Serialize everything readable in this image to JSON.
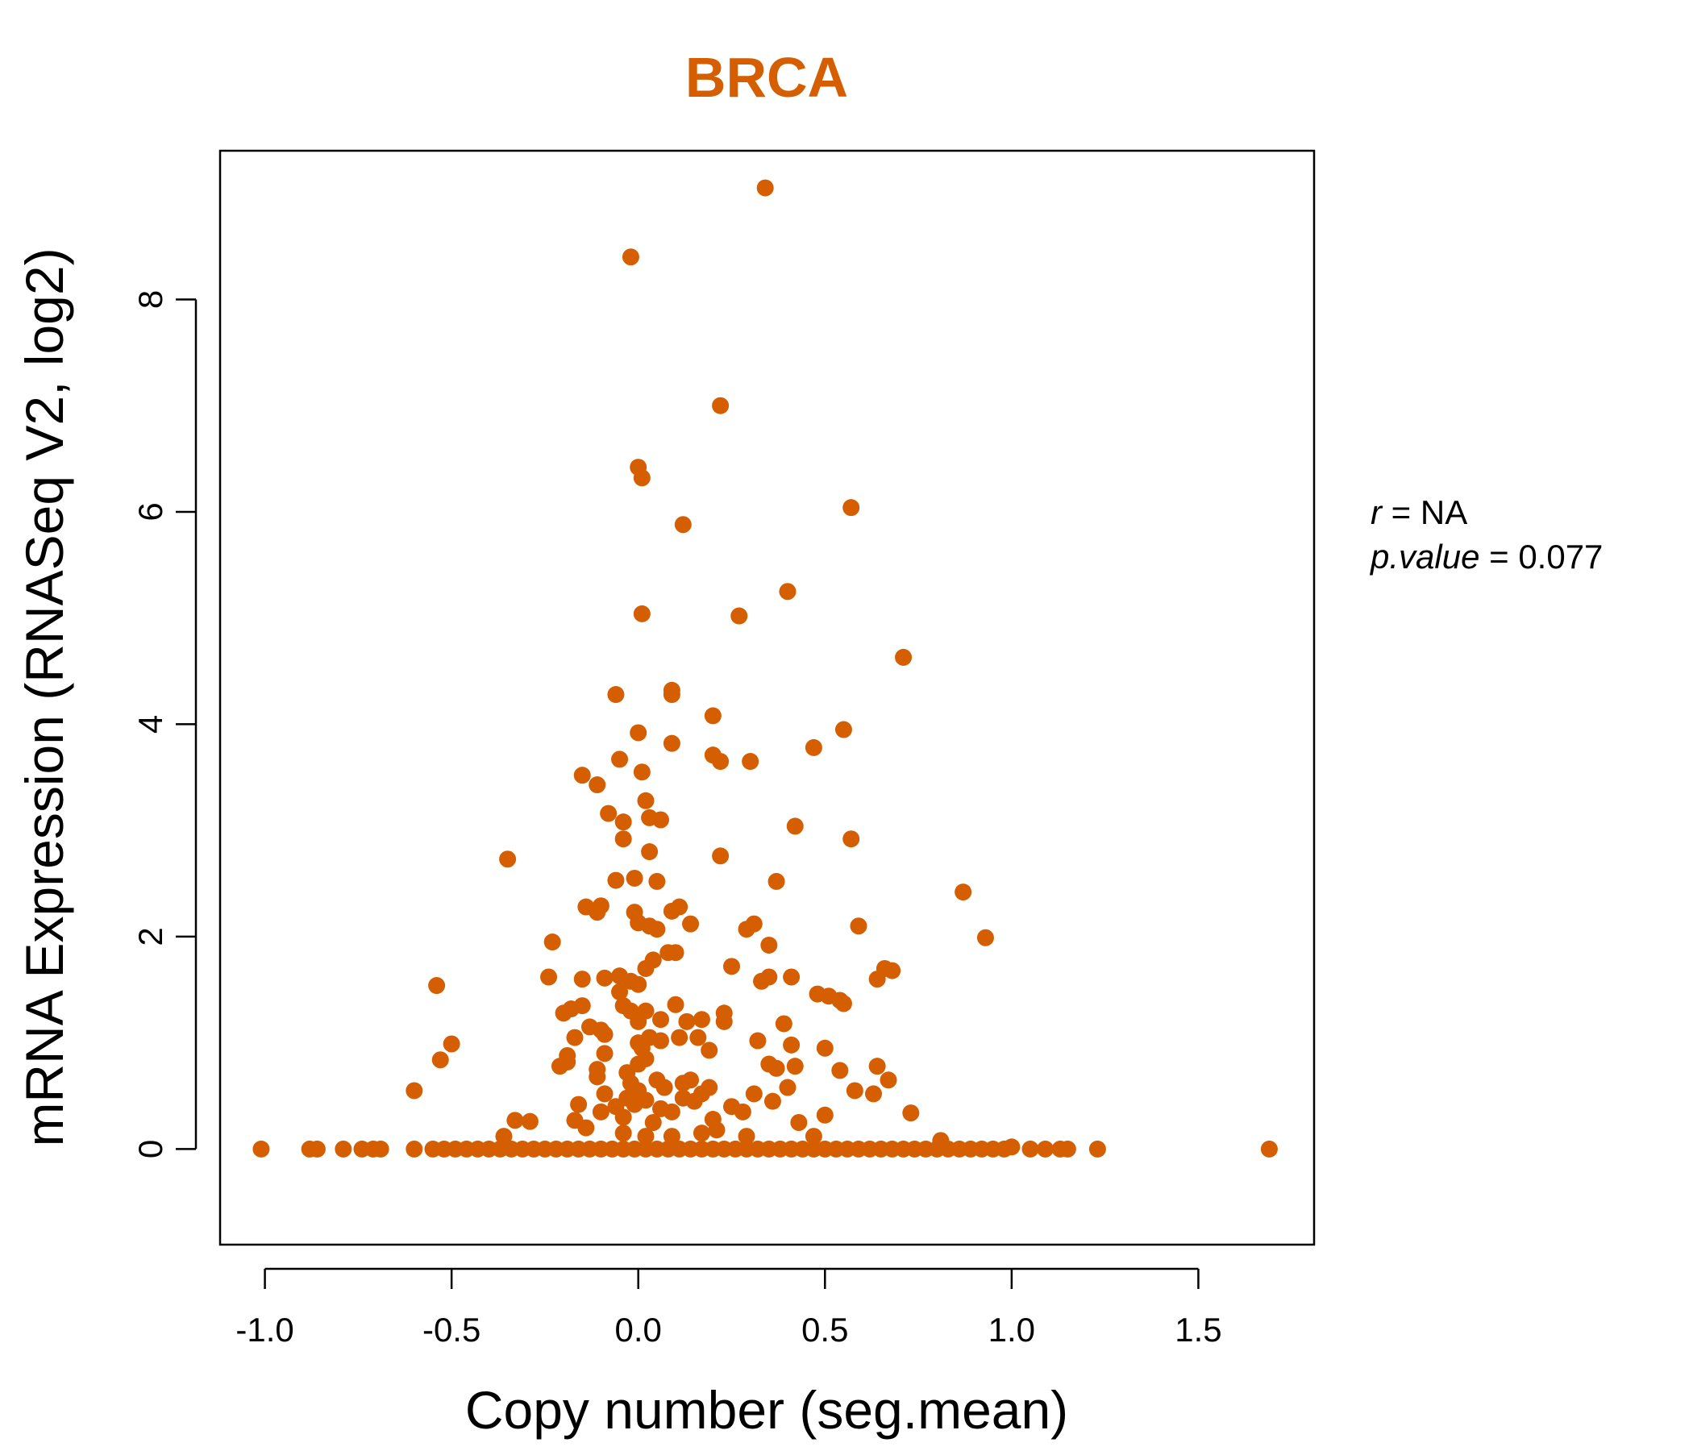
{
  "chart_data": {
    "type": "scatter",
    "title": "BRCA",
    "xlabel": "Copy number (seg.mean)",
    "ylabel": "mRNA Expression (RNASeq V2, log2)",
    "xlim": [
      -1.12,
      1.81
    ],
    "ylim": [
      -0.9,
      9.4
    ],
    "x_ticks": [
      -1.0,
      -0.5,
      0.0,
      0.5,
      1.0,
      1.5
    ],
    "x_tick_labels": [
      "-1.0",
      "-0.5",
      "0.0",
      "0.5",
      "1.0",
      "1.5"
    ],
    "y_ticks": [
      0,
      2,
      4,
      6,
      8
    ],
    "y_tick_labels": [
      "0",
      "2",
      "4",
      "6",
      "8"
    ],
    "grid": false,
    "legend": "none",
    "point_color": "#D55E00",
    "title_color": "#D55E00",
    "stats": {
      "r_label": "r",
      "r_value": "NA",
      "p_label": "p.value",
      "p_value": "0.077"
    },
    "points": [
      [
        0.34,
        9.05
      ],
      [
        -0.02,
        8.4
      ],
      [
        0.22,
        7.0
      ],
      [
        0.0,
        6.42
      ],
      [
        0.01,
        6.32
      ],
      [
        0.12,
        5.88
      ],
      [
        0.57,
        6.04
      ],
      [
        0.01,
        5.04
      ],
      [
        0.27,
        5.02
      ],
      [
        0.4,
        5.25
      ],
      [
        0.71,
        4.63
      ],
      [
        -0.06,
        4.28
      ],
      [
        0.09,
        4.32
      ],
      [
        0.09,
        4.28
      ],
      [
        0.2,
        4.08
      ],
      [
        0.0,
        3.92
      ],
      [
        0.55,
        3.95
      ],
      [
        -0.05,
        3.67
      ],
      [
        0.09,
        3.82
      ],
      [
        0.2,
        3.71
      ],
      [
        0.22,
        3.65
      ],
      [
        0.3,
        3.65
      ],
      [
        0.47,
        3.78
      ],
      [
        -0.15,
        3.52
      ],
      [
        -0.11,
        3.43
      ],
      [
        0.01,
        3.55
      ],
      [
        0.02,
        3.28
      ],
      [
        -0.08,
        3.16
      ],
      [
        -0.04,
        3.08
      ],
      [
        -0.04,
        2.92
      ],
      [
        0.03,
        3.12
      ],
      [
        0.06,
        3.1
      ],
      [
        0.03,
        2.8
      ],
      [
        0.22,
        2.76
      ],
      [
        0.42,
        3.04
      ],
      [
        0.57,
        2.92
      ],
      [
        -0.35,
        2.73
      ],
      [
        -0.06,
        2.53
      ],
      [
        -0.01,
        2.55
      ],
      [
        0.05,
        2.52
      ],
      [
        0.37,
        2.52
      ],
      [
        0.87,
        2.42
      ],
      [
        -0.14,
        2.28
      ],
      [
        -0.11,
        2.23
      ],
      [
        -0.1,
        2.29
      ],
      [
        -0.01,
        2.23
      ],
      [
        0.0,
        2.13
      ],
      [
        0.03,
        2.1
      ],
      [
        0.05,
        2.07
      ],
      [
        0.09,
        2.24
      ],
      [
        0.11,
        2.28
      ],
      [
        0.14,
        2.12
      ],
      [
        0.29,
        2.07
      ],
      [
        0.31,
        2.12
      ],
      [
        0.59,
        2.1
      ],
      [
        0.93,
        1.99
      ],
      [
        -0.23,
        1.95
      ],
      [
        0.35,
        1.92
      ],
      [
        -0.24,
        1.62
      ],
      [
        -0.15,
        1.6
      ],
      [
        -0.09,
        1.61
      ],
      [
        -0.05,
        1.63
      ],
      [
        -0.02,
        1.58
      ],
      [
        0.0,
        1.55
      ],
      [
        0.02,
        1.7
      ],
      [
        0.04,
        1.78
      ],
      [
        0.08,
        1.85
      ],
      [
        0.1,
        1.85
      ],
      [
        0.25,
        1.72
      ],
      [
        0.33,
        1.58
      ],
      [
        0.35,
        1.62
      ],
      [
        0.41,
        1.62
      ],
      [
        0.48,
        1.46
      ],
      [
        0.51,
        1.44
      ],
      [
        0.54,
        1.4
      ],
      [
        0.55,
        1.37
      ],
      [
        0.64,
        1.6
      ],
      [
        0.66,
        1.7
      ],
      [
        0.68,
        1.68
      ],
      [
        -0.54,
        1.54
      ],
      [
        -0.2,
        1.28
      ],
      [
        -0.18,
        1.32
      ],
      [
        -0.15,
        1.35
      ],
      [
        -0.13,
        1.15
      ],
      [
        -0.1,
        1.12
      ],
      [
        -0.05,
        1.48
      ],
      [
        -0.04,
        1.35
      ],
      [
        -0.02,
        1.3
      ],
      [
        0.0,
        1.2
      ],
      [
        0.02,
        1.3
      ],
      [
        0.06,
        1.22
      ],
      [
        0.1,
        1.36
      ],
      [
        0.13,
        1.2
      ],
      [
        0.17,
        1.22
      ],
      [
        0.23,
        1.28
      ],
      [
        0.23,
        1.2
      ],
      [
        -0.17,
        1.05
      ],
      [
        -0.09,
        1.08
      ],
      [
        0.0,
        1.0
      ],
      [
        0.01,
        0.95
      ],
      [
        0.03,
        1.05
      ],
      [
        0.06,
        1.02
      ],
      [
        0.11,
        1.05
      ],
      [
        0.16,
        1.05
      ],
      [
        0.19,
        0.93
      ],
      [
        0.32,
        1.02
      ],
      [
        0.39,
        1.18
      ],
      [
        0.41,
        0.98
      ],
      [
        0.5,
        0.95
      ],
      [
        -0.5,
        0.99
      ],
      [
        -0.53,
        0.84
      ],
      [
        -0.21,
        0.78
      ],
      [
        -0.19,
        0.88
      ],
      [
        -0.19,
        0.82
      ],
      [
        -0.11,
        0.75
      ],
      [
        -0.09,
        0.9
      ],
      [
        -0.03,
        0.72
      ],
      [
        0.0,
        0.8
      ],
      [
        0.02,
        0.85
      ],
      [
        0.35,
        0.8
      ],
      [
        0.37,
        0.76
      ],
      [
        0.42,
        0.78
      ],
      [
        0.54,
        0.74
      ],
      [
        0.64,
        0.78
      ],
      [
        -0.11,
        0.68
      ],
      [
        -0.02,
        0.62
      ],
      [
        0.05,
        0.65
      ],
      [
        0.07,
        0.58
      ],
      [
        0.12,
        0.62
      ],
      [
        0.14,
        0.65
      ],
      [
        0.17,
        0.52
      ],
      [
        0.19,
        0.58
      ],
      [
        0.31,
        0.52
      ],
      [
        0.36,
        0.45
      ],
      [
        0.4,
        0.58
      ],
      [
        0.58,
        0.55
      ],
      [
        0.63,
        0.52
      ],
      [
        0.67,
        0.65
      ],
      [
        -0.6,
        0.55
      ],
      [
        -0.16,
        0.42
      ],
      [
        -0.09,
        0.52
      ],
      [
        -0.06,
        0.4
      ],
      [
        -0.03,
        0.48
      ],
      [
        -0.01,
        0.42
      ],
      [
        0.0,
        0.55
      ],
      [
        0.02,
        0.46
      ],
      [
        0.06,
        0.38
      ],
      [
        0.09,
        0.35
      ],
      [
        0.12,
        0.48
      ],
      [
        0.15,
        0.45
      ],
      [
        0.25,
        0.4
      ],
      [
        0.28,
        0.35
      ],
      [
        0.5,
        0.32
      ],
      [
        0.73,
        0.34
      ],
      [
        -0.33,
        0.27
      ],
      [
        -0.29,
        0.26
      ],
      [
        -0.17,
        0.27
      ],
      [
        -0.14,
        0.2
      ],
      [
        -0.1,
        0.35
      ],
      [
        -0.04,
        0.3
      ],
      [
        0.04,
        0.25
      ],
      [
        0.2,
        0.28
      ],
      [
        0.43,
        0.25
      ],
      [
        -0.36,
        0.12
      ],
      [
        -0.04,
        0.15
      ],
      [
        0.02,
        0.12
      ],
      [
        0.09,
        0.12
      ],
      [
        0.17,
        0.15
      ],
      [
        0.21,
        0.18
      ],
      [
        0.29,
        0.12
      ],
      [
        0.47,
        0.12
      ],
      [
        0.81,
        0.08
      ],
      [
        -1.01,
        0.0
      ],
      [
        -0.88,
        0.0
      ],
      [
        -0.86,
        0.0
      ],
      [
        -0.79,
        0.0
      ],
      [
        -0.74,
        0.0
      ],
      [
        -0.71,
        0.0
      ],
      [
        -0.69,
        0.0
      ],
      [
        -0.6,
        0.0
      ],
      [
        -0.55,
        0.0
      ],
      [
        -0.52,
        0.0
      ],
      [
        -0.49,
        0.0
      ],
      [
        -0.46,
        0.0
      ],
      [
        -0.43,
        0.0
      ],
      [
        -0.4,
        0.0
      ],
      [
        -0.37,
        0.0
      ],
      [
        -0.34,
        0.0
      ],
      [
        -0.31,
        0.0
      ],
      [
        -0.28,
        0.0
      ],
      [
        -0.25,
        0.0
      ],
      [
        -0.22,
        0.0
      ],
      [
        -0.19,
        0.0
      ],
      [
        -0.16,
        0.0
      ],
      [
        -0.13,
        0.0
      ],
      [
        -0.1,
        0.0
      ],
      [
        -0.07,
        0.0
      ],
      [
        -0.04,
        0.0
      ],
      [
        -0.01,
        0.0
      ],
      [
        0.02,
        0.0
      ],
      [
        0.05,
        0.0
      ],
      [
        0.08,
        0.0
      ],
      [
        0.11,
        0.0
      ],
      [
        0.14,
        0.0
      ],
      [
        0.17,
        0.0
      ],
      [
        0.2,
        0.0
      ],
      [
        0.23,
        0.0
      ],
      [
        0.26,
        0.0
      ],
      [
        0.29,
        0.0
      ],
      [
        0.32,
        0.0
      ],
      [
        0.35,
        0.0
      ],
      [
        0.38,
        0.0
      ],
      [
        0.41,
        0.0
      ],
      [
        0.44,
        0.0
      ],
      [
        0.47,
        0.0
      ],
      [
        0.5,
        0.0
      ],
      [
        0.53,
        0.0
      ],
      [
        0.56,
        0.0
      ],
      [
        0.59,
        0.0
      ],
      [
        0.62,
        0.0
      ],
      [
        0.65,
        0.0
      ],
      [
        0.68,
        0.0
      ],
      [
        0.71,
        0.0
      ],
      [
        0.74,
        0.0
      ],
      [
        0.77,
        0.0
      ],
      [
        0.8,
        0.0
      ],
      [
        0.83,
        0.0
      ],
      [
        0.86,
        0.0
      ],
      [
        0.89,
        0.0
      ],
      [
        0.92,
        0.0
      ],
      [
        0.95,
        0.0
      ],
      [
        0.98,
        0.0
      ],
      [
        1.0,
        0.02
      ],
      [
        1.05,
        0.0
      ],
      [
        1.09,
        0.0
      ],
      [
        1.13,
        0.0
      ],
      [
        1.15,
        0.0
      ],
      [
        1.23,
        0.0
      ],
      [
        1.69,
        0.0
      ]
    ]
  }
}
